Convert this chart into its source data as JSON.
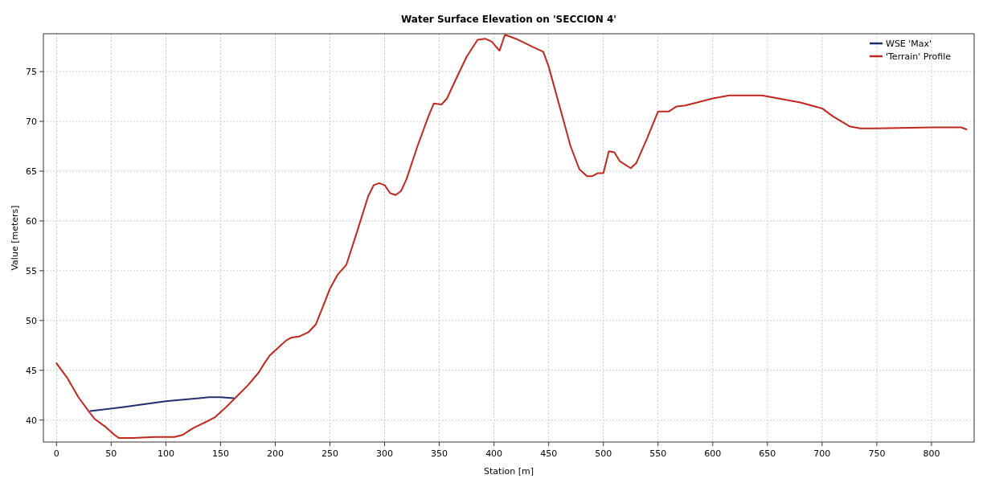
{
  "chart_data": {
    "type": "line",
    "title": "Water Surface Elevation on 'SECCION 4'",
    "xlabel": "Station [m]",
    "ylabel": "Value [meters]",
    "xlim": [
      -12,
      839
    ],
    "ylim": [
      37.8,
      78.8
    ],
    "xticks": [
      0,
      50,
      100,
      150,
      200,
      250,
      300,
      350,
      400,
      450,
      500,
      550,
      600,
      650,
      700,
      750,
      800
    ],
    "yticks": [
      40,
      45,
      50,
      55,
      60,
      65,
      70,
      75
    ],
    "grid": true,
    "legend": "top right",
    "series": [
      {
        "name": "WSE 'Max'",
        "color": "#1f2f6e",
        "x": [
          31,
          60,
          100,
          140,
          150,
          162
        ],
        "values": [
          40.9,
          41.3,
          41.9,
          42.3,
          42.3,
          42.2
        ]
      },
      {
        "name": "'Terrain' Profile",
        "color": "#c0281e",
        "x": [
          0,
          10,
          20,
          30,
          35,
          45,
          52,
          57,
          70,
          90,
          108,
          115,
          125,
          140,
          145,
          155,
          165,
          175,
          185,
          190,
          195,
          205,
          210,
          215,
          222,
          230,
          237,
          245,
          250,
          257,
          265,
          275,
          285,
          290,
          295,
          300,
          305,
          310,
          315,
          320,
          330,
          340,
          345,
          352,
          357,
          365,
          375,
          385,
          392,
          398,
          405,
          410,
          420,
          435,
          445,
          450,
          460,
          470,
          478,
          485,
          490,
          495,
          500,
          505,
          510,
          515,
          525,
          530,
          540,
          550,
          560,
          567,
          575,
          600,
          615,
          640,
          645,
          680,
          700,
          710,
          725,
          735,
          750,
          800,
          827,
          832
        ],
        "values": [
          45.7,
          44.2,
          42.3,
          40.8,
          40.1,
          39.3,
          38.6,
          38.2,
          38.2,
          38.3,
          38.3,
          38.5,
          39.2,
          40.0,
          40.3,
          41.3,
          42.4,
          43.5,
          44.8,
          45.7,
          46.5,
          47.5,
          48.0,
          48.3,
          48.4,
          48.8,
          49.6,
          51.8,
          53.2,
          54.6,
          55.6,
          59.0,
          62.5,
          63.6,
          63.8,
          63.6,
          62.8,
          62.6,
          63.0,
          64.2,
          67.5,
          70.5,
          71.8,
          71.7,
          72.3,
          74.2,
          76.5,
          78.2,
          78.3,
          78.0,
          77.1,
          78.7,
          78.3,
          77.5,
          77.0,
          75.5,
          71.5,
          67.5,
          65.2,
          64.5,
          64.5,
          64.8,
          64.8,
          67.0,
          66.9,
          66.0,
          65.3,
          65.8,
          68.3,
          71.0,
          71.0,
          71.5,
          71.6,
          72.3,
          72.6,
          72.6,
          72.6,
          71.9,
          71.3,
          70.5,
          69.5,
          69.3,
          69.3,
          69.4,
          69.4,
          69.2
        ]
      }
    ]
  }
}
